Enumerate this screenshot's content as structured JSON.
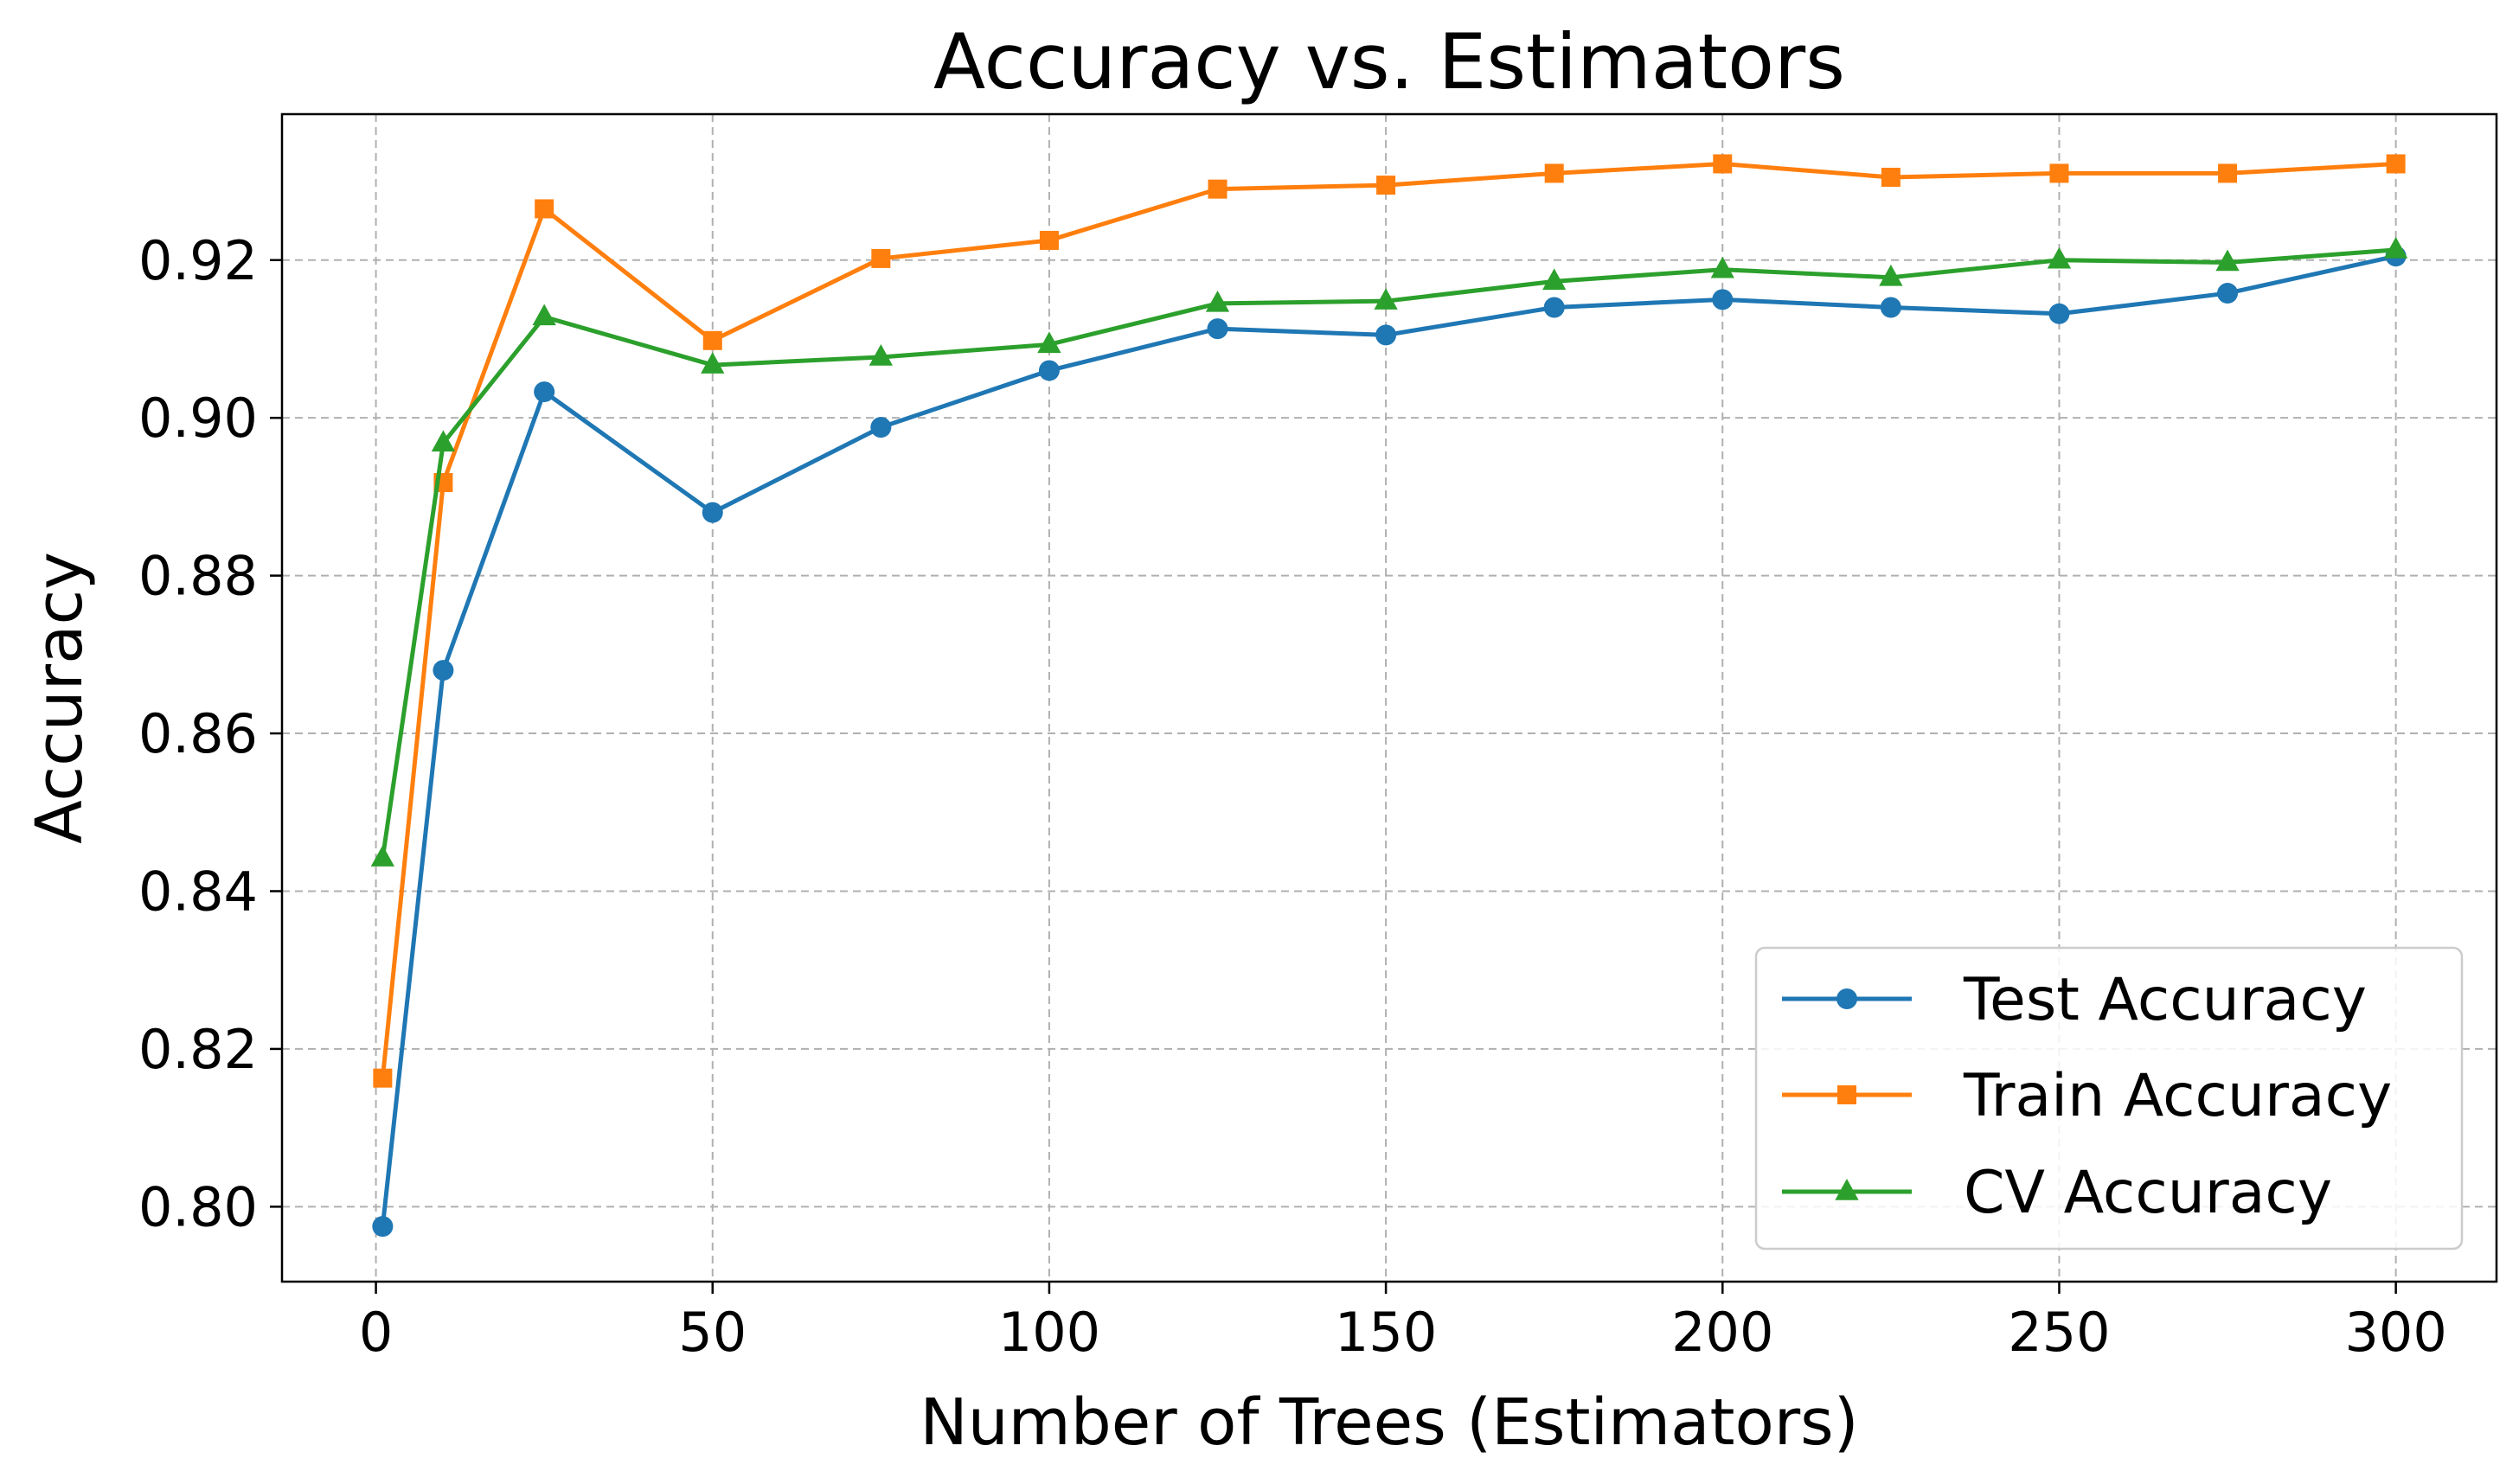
{
  "chart_data": {
    "type": "line",
    "title": "Accuracy vs. Estimators",
    "xlabel": "Number of Trees (Estimators)",
    "ylabel": "Accuracy",
    "x": [
      1,
      10,
      25,
      50,
      75,
      100,
      125,
      150,
      175,
      200,
      225,
      250,
      275,
      300
    ],
    "xlim": [
      -13.95,
      314.95
    ],
    "ylim": [
      0.7905,
      0.9385
    ],
    "x_ticks": [
      0,
      50,
      100,
      150,
      200,
      250,
      300
    ],
    "x_tick_labels": [
      "0",
      "50",
      "100",
      "150",
      "200",
      "250",
      "300"
    ],
    "y_ticks": [
      0.8,
      0.82,
      0.84,
      0.86,
      0.88,
      0.9,
      0.92
    ],
    "y_tick_labels": [
      "0.80",
      "0.82",
      "0.84",
      "0.86",
      "0.88",
      "0.90",
      "0.92"
    ],
    "grid": true,
    "legend_position": "lower-right",
    "series": [
      {
        "name": "Test Accuracy",
        "color": "#1f77b4",
        "marker": "circle",
        "values": [
          0.7975,
          0.868,
          0.9033,
          0.888,
          0.8988,
          0.906,
          0.9113,
          0.9105,
          0.914,
          0.915,
          0.914,
          0.9132,
          0.9158,
          0.9205
        ]
      },
      {
        "name": "Train Accuracy",
        "color": "#ff7f0e",
        "marker": "square",
        "values": [
          0.8163,
          0.8918,
          0.9265,
          0.9098,
          0.9202,
          0.9225,
          0.929,
          0.9295,
          0.931,
          0.9322,
          0.9305,
          0.931,
          0.931,
          0.9322
        ]
      },
      {
        "name": "CV Accuracy",
        "color": "#2ca02c",
        "marker": "triangle",
        "values": [
          0.8442,
          0.8968,
          0.9128,
          0.9067,
          0.9077,
          0.9093,
          0.9145,
          0.9148,
          0.9173,
          0.9188,
          0.9178,
          0.92,
          0.9197,
          0.9213
        ]
      }
    ]
  }
}
